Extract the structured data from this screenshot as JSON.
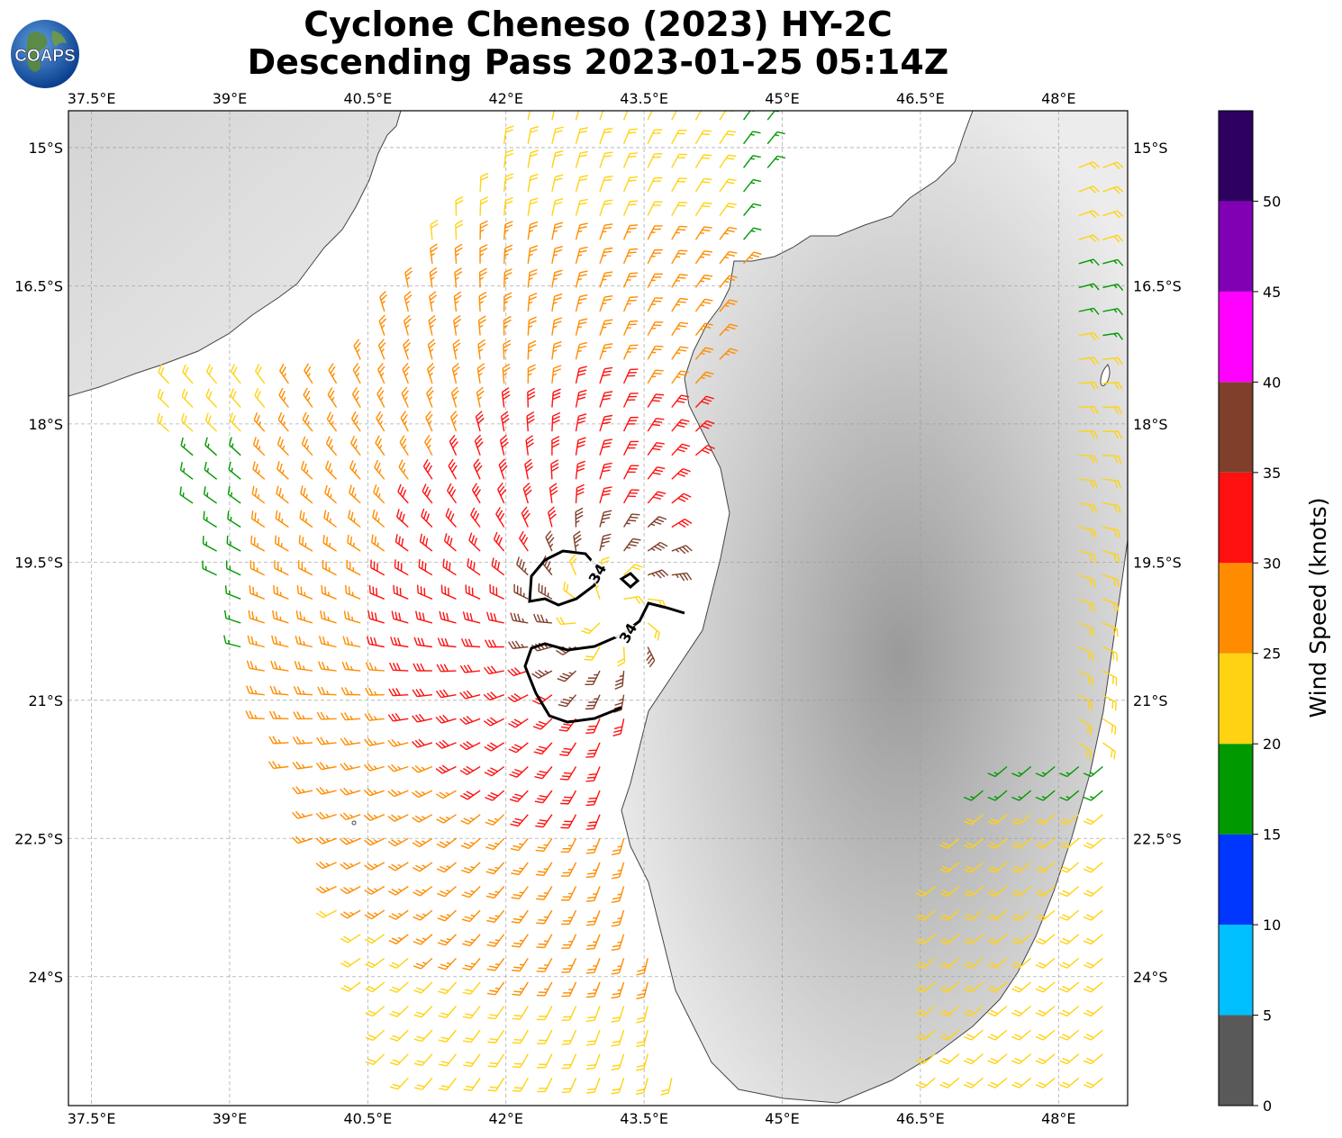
{
  "title": {
    "line1": "Cyclone Cheneso (2023) HY-2C",
    "line2": "Descending Pass 2023-01-25 05:14Z"
  },
  "logo": {
    "text": "COAPS",
    "icon": "globe-icon"
  },
  "map": {
    "projection": "PlateCarree",
    "lon_range": [
      37.25,
      48.75
    ],
    "lat_range": [
      -25.4,
      -14.6
    ],
    "lon_ticks": [
      "37.5°E",
      "39°E",
      "40.5°E",
      "42°E",
      "43.5°E",
      "45°E",
      "46.5°E",
      "48°E"
    ],
    "lat_ticks": [
      "15°S",
      "16.5°S",
      "18°S",
      "19.5°S",
      "21°S",
      "22.5°S",
      "24°S"
    ],
    "gridlines": true,
    "background": "grayscale topography",
    "cyclone_center": {
      "lon": 43.1,
      "lat": -20.0
    },
    "contour_level_label": "34",
    "contour_labels": [
      "34",
      "34"
    ]
  },
  "colorbar": {
    "label": "Wind Speed (knots)",
    "ticks": [
      "0",
      "5",
      "10",
      "15",
      "20",
      "25",
      "30",
      "35",
      "40",
      "45",
      "50"
    ],
    "bins": [
      {
        "range": [
          0,
          5
        ],
        "color": "#595959"
      },
      {
        "range": [
          5,
          10
        ],
        "color": "#00bfff"
      },
      {
        "range": [
          10,
          15
        ],
        "color": "#0037ff"
      },
      {
        "range": [
          15,
          20
        ],
        "color": "#009900"
      },
      {
        "range": [
          20,
          25
        ],
        "color": "#ffd312"
      },
      {
        "range": [
          25,
          30
        ],
        "color": "#ff8c00"
      },
      {
        "range": [
          30,
          35
        ],
        "color": "#ff1010"
      },
      {
        "range": [
          35,
          40
        ],
        "color": "#803f2a"
      },
      {
        "range": [
          40,
          45
        ],
        "color": "#ff00ff"
      },
      {
        "range": [
          45,
          50
        ],
        "color": "#8000b3"
      },
      {
        "range": [
          50,
          55
        ],
        "color": "#2d005f"
      }
    ]
  }
}
